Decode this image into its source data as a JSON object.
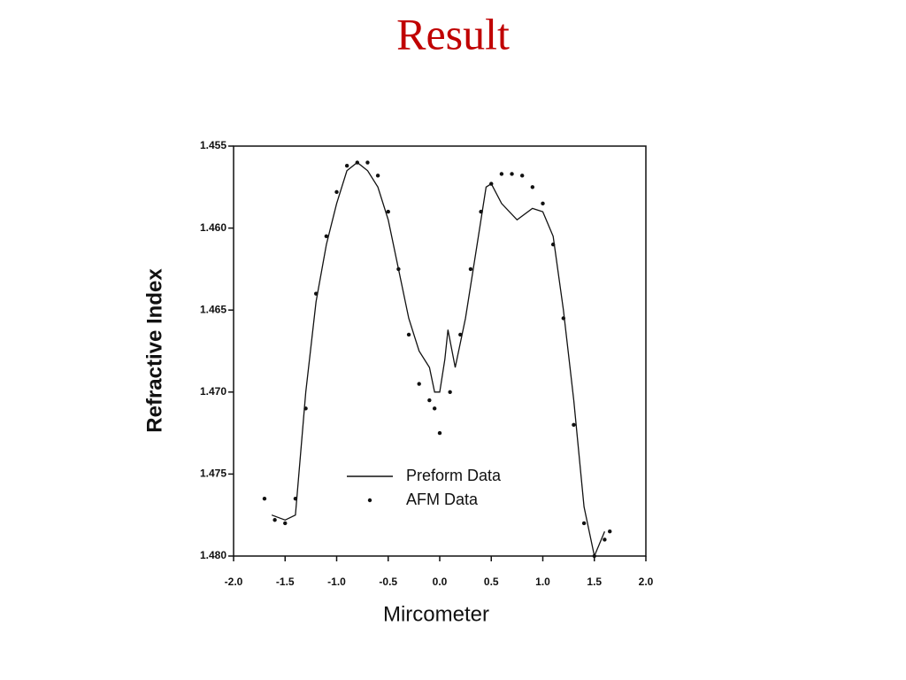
{
  "title": "Result",
  "chart_data": {
    "type": "line",
    "xlabel": "Mircometer",
    "ylabel": "Refractive Index",
    "xlim": [
      -2.0,
      2.0
    ],
    "xticks": [
      {
        "value": -2,
        "label": "-2.0"
      },
      -1.5,
      {
        "value": -1,
        "label": "-1.0"
      },
      -0.5,
      {
        "value": 0,
        "label": "0.0"
      },
      0.5,
      {
        "value": 1,
        "label": "1.0"
      },
      1.5,
      {
        "value": 2,
        "label": "2.0"
      }
    ],
    "ylim": [
      1.48,
      1.455
    ],
    "yticks": [
      {
        "value": 1.48,
        "label": "1.480"
      },
      1.475,
      {
        "value": 1.47,
        "label": "1.470"
      },
      1.465,
      {
        "value": 1.46,
        "label": "1.460"
      },
      1.455
    ],
    "legend": "lower center",
    "series": [
      {
        "name": "Preform Data",
        "type": "line",
        "color": "#111111",
        "x": [
          -1.63,
          -1.5,
          -1.4,
          -1.3,
          -1.2,
          -1.1,
          -1.0,
          -0.9,
          -0.8,
          -0.7,
          -0.6,
          -0.5,
          -0.4,
          -0.3,
          -0.2,
          -0.1,
          -0.05,
          0.0,
          0.05,
          0.08,
          0.15,
          0.25,
          0.35,
          0.45,
          0.5,
          0.6,
          0.75,
          0.9,
          1.0,
          1.1,
          1.2,
          1.3,
          1.4,
          1.5,
          1.6
        ],
        "values": [
          1.4775,
          1.4778,
          1.4775,
          1.47,
          1.4645,
          1.461,
          1.4585,
          1.4565,
          1.456,
          1.4565,
          1.4575,
          1.4595,
          1.4625,
          1.4655,
          1.4675,
          1.4685,
          1.47,
          1.47,
          1.468,
          1.4662,
          1.4685,
          1.4655,
          1.4615,
          1.4575,
          1.4573,
          1.4585,
          1.4595,
          1.4588,
          1.459,
          1.4605,
          1.465,
          1.4705,
          1.477,
          1.48,
          1.4785
        ]
      },
      {
        "name": "AFM Data",
        "type": "scatter",
        "color": "#111111",
        "x": [
          -1.7,
          -1.6,
          -1.5,
          -1.4,
          -1.3,
          -1.2,
          -1.1,
          -1.0,
          -0.9,
          -0.8,
          -0.7,
          -0.6,
          -0.5,
          -0.4,
          -0.3,
          -0.2,
          -0.1,
          -0.05,
          0.0,
          0.1,
          0.2,
          0.3,
          0.4,
          0.5,
          0.6,
          0.7,
          0.8,
          0.9,
          1.0,
          1.1,
          1.2,
          1.3,
          1.4,
          1.5,
          1.6,
          1.65
        ],
        "values": [
          1.4765,
          1.4778,
          1.478,
          1.4765,
          1.471,
          1.464,
          1.4605,
          1.4578,
          1.4562,
          1.456,
          1.456,
          1.4568,
          1.459,
          1.4625,
          1.4665,
          1.4695,
          1.4705,
          1.471,
          1.4725,
          1.47,
          1.4665,
          1.4625,
          1.459,
          1.4573,
          1.4567,
          1.4567,
          1.4568,
          1.4575,
          1.4585,
          1.461,
          1.4655,
          1.472,
          1.478,
          1.48,
          1.479,
          1.4785
        ]
      }
    ]
  }
}
